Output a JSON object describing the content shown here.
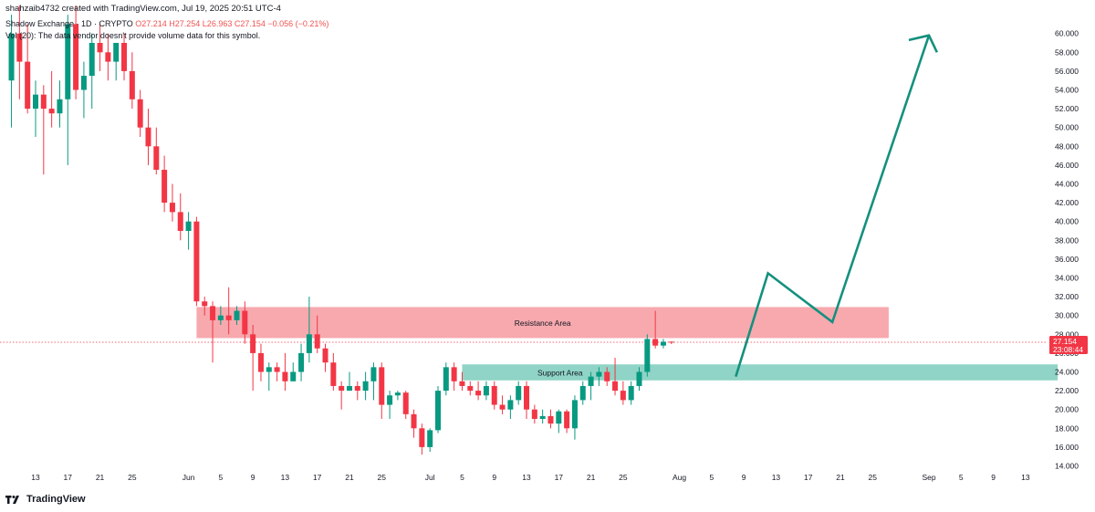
{
  "header": {
    "creator_line": "shahzaib4732 created with TradingView.com, Jul 19, 2025 20:51 UTC-4",
    "symbol_line": "Shadow Exchange · 1D · CRYPTO",
    "ohlc_line": "O27.214 H27.254 L26.963 C27.154 −0.056 (−0.21%)",
    "volume_note": "Vol (20): The data vendor doesn't provide volume data for this symbol."
  },
  "footer": {
    "brand": "TradingView"
  },
  "colors": {
    "up": "#089981",
    "down": "#f23645",
    "resistance_fill": "#f7a9ae",
    "support_fill": "#8fd4c6",
    "projection": "#14907e",
    "price_tag": "#f23645"
  },
  "chart_data": {
    "type": "candlestick",
    "timeframe": "1D",
    "y_axis": {
      "min": 14,
      "max": 61,
      "side": "right",
      "ticks": [
        "14.000",
        "16.000",
        "18.000",
        "20.000",
        "22.000",
        "24.000",
        "26.000",
        "28.000",
        "30.000",
        "32.000",
        "34.000",
        "36.000",
        "38.000",
        "40.000",
        "42.000",
        "44.000",
        "46.000",
        "48.000",
        "50.000",
        "52.000",
        "54.000",
        "56.000",
        "58.000",
        "60.000"
      ]
    },
    "x_axis": {
      "ticks": [
        {
          "label": "13",
          "day": 0
        },
        {
          "label": "17",
          "day": 4
        },
        {
          "label": "21",
          "day": 8
        },
        {
          "label": "25",
          "day": 12
        },
        {
          "label": "Jun",
          "day": 19
        },
        {
          "label": "5",
          "day": 23
        },
        {
          "label": "9",
          "day": 27
        },
        {
          "label": "13",
          "day": 31
        },
        {
          "label": "17",
          "day": 35
        },
        {
          "label": "21",
          "day": 39
        },
        {
          "label": "25",
          "day": 43
        },
        {
          "label": "Jul",
          "day": 49
        },
        {
          "label": "5",
          "day": 53
        },
        {
          "label": "9",
          "day": 57
        },
        {
          "label": "13",
          "day": 61
        },
        {
          "label": "17",
          "day": 65
        },
        {
          "label": "21",
          "day": 69
        },
        {
          "label": "25",
          "day": 73
        },
        {
          "label": "Aug",
          "day": 80
        },
        {
          "label": "5",
          "day": 84
        },
        {
          "label": "9",
          "day": 88
        },
        {
          "label": "13",
          "day": 92
        },
        {
          "label": "17",
          "day": 96
        },
        {
          "label": "21",
          "day": 100
        },
        {
          "label": "25",
          "day": 104
        },
        {
          "label": "Sep",
          "day": 111
        },
        {
          "label": "5",
          "day": 115
        },
        {
          "label": "9",
          "day": 119
        },
        {
          "label": "13",
          "day": 123
        }
      ]
    },
    "candles": [
      {
        "d": -3,
        "o": 55,
        "h": 62,
        "l": 50,
        "c": 60
      },
      {
        "d": -2,
        "o": 60,
        "h": 63,
        "l": 53,
        "c": 57
      },
      {
        "d": -1,
        "o": 57,
        "h": 61,
        "l": 51.5,
        "c": 52
      },
      {
        "d": 0,
        "o": 52,
        "h": 55,
        "l": 49,
        "c": 53.5
      },
      {
        "d": 1,
        "o": 53.5,
        "h": 54.5,
        "l": 45,
        "c": 52
      },
      {
        "d": 2,
        "o": 52,
        "h": 56,
        "l": 50,
        "c": 51.5
      },
      {
        "d": 3,
        "o": 51.5,
        "h": 55,
        "l": 50,
        "c": 53
      },
      {
        "d": 4,
        "o": 53,
        "h": 62,
        "l": 46,
        "c": 61
      },
      {
        "d": 5,
        "o": 61,
        "h": 63,
        "l": 53,
        "c": 54
      },
      {
        "d": 6,
        "o": 54,
        "h": 57,
        "l": 51,
        "c": 55.5
      },
      {
        "d": 7,
        "o": 55.5,
        "h": 60,
        "l": 52,
        "c": 59
      },
      {
        "d": 8,
        "o": 59,
        "h": 61,
        "l": 56,
        "c": 58
      },
      {
        "d": 9,
        "o": 58,
        "h": 60,
        "l": 55,
        "c": 57
      },
      {
        "d": 10,
        "o": 57,
        "h": 59,
        "l": 55,
        "c": 59
      },
      {
        "d": 11,
        "o": 59,
        "h": 60,
        "l": 55,
        "c": 56
      },
      {
        "d": 12,
        "o": 56,
        "h": 58,
        "l": 52,
        "c": 53
      },
      {
        "d": 13,
        "o": 53,
        "h": 54,
        "l": 49,
        "c": 50
      },
      {
        "d": 14,
        "o": 50,
        "h": 52,
        "l": 46,
        "c": 48
      },
      {
        "d": 15,
        "o": 48,
        "h": 50,
        "l": 45,
        "c": 45.5
      },
      {
        "d": 16,
        "o": 45.5,
        "h": 47,
        "l": 41,
        "c": 42
      },
      {
        "d": 17,
        "o": 42,
        "h": 44,
        "l": 40,
        "c": 41
      },
      {
        "d": 18,
        "o": 41,
        "h": 43,
        "l": 38,
        "c": 39
      },
      {
        "d": 19,
        "o": 39,
        "h": 41,
        "l": 37,
        "c": 40
      },
      {
        "d": 20,
        "o": 40,
        "h": 40.5,
        "l": 31,
        "c": 31.5
      },
      {
        "d": 21,
        "o": 31.5,
        "h": 32,
        "l": 30,
        "c": 31
      },
      {
        "d": 22,
        "o": 31,
        "h": 31.5,
        "l": 25,
        "c": 29.5
      },
      {
        "d": 23,
        "o": 29.5,
        "h": 31,
        "l": 29,
        "c": 30
      },
      {
        "d": 24,
        "o": 30,
        "h": 33,
        "l": 28,
        "c": 29.5
      },
      {
        "d": 25,
        "o": 29.5,
        "h": 31,
        "l": 29,
        "c": 30.5
      },
      {
        "d": 26,
        "o": 30.5,
        "h": 31.5,
        "l": 27,
        "c": 28
      },
      {
        "d": 27,
        "o": 28,
        "h": 29,
        "l": 22,
        "c": 26
      },
      {
        "d": 28,
        "o": 26,
        "h": 27,
        "l": 23,
        "c": 24
      },
      {
        "d": 29,
        "o": 24,
        "h": 25,
        "l": 22,
        "c": 24.5
      },
      {
        "d": 30,
        "o": 24.5,
        "h": 25,
        "l": 23,
        "c": 24
      },
      {
        "d": 31,
        "o": 24,
        "h": 26,
        "l": 22,
        "c": 23
      },
      {
        "d": 32,
        "o": 23,
        "h": 25,
        "l": 23,
        "c": 24
      },
      {
        "d": 33,
        "o": 24,
        "h": 27,
        "l": 23,
        "c": 26
      },
      {
        "d": 34,
        "o": 26,
        "h": 32,
        "l": 25,
        "c": 28
      },
      {
        "d": 35,
        "o": 28,
        "h": 30,
        "l": 26,
        "c": 26.5
      },
      {
        "d": 36,
        "o": 26.5,
        "h": 27,
        "l": 24,
        "c": 25
      },
      {
        "d": 37,
        "o": 25,
        "h": 26,
        "l": 22,
        "c": 22.5
      },
      {
        "d": 38,
        "o": 22.5,
        "h": 23,
        "l": 20,
        "c": 22
      },
      {
        "d": 39,
        "o": 22,
        "h": 24,
        "l": 22,
        "c": 22.5
      },
      {
        "d": 40,
        "o": 22.5,
        "h": 23,
        "l": 21,
        "c": 22
      },
      {
        "d": 41,
        "o": 22,
        "h": 24,
        "l": 21,
        "c": 23
      },
      {
        "d": 42,
        "o": 23,
        "h": 25,
        "l": 21,
        "c": 24.5
      },
      {
        "d": 43,
        "o": 24.5,
        "h": 25,
        "l": 19,
        "c": 20.5
      },
      {
        "d": 44,
        "o": 20.5,
        "h": 22,
        "l": 19,
        "c": 21.5
      },
      {
        "d": 45,
        "o": 21.5,
        "h": 22,
        "l": 21,
        "c": 21.8
      },
      {
        "d": 46,
        "o": 21.8,
        "h": 22,
        "l": 19,
        "c": 19.5
      },
      {
        "d": 47,
        "o": 19.5,
        "h": 20,
        "l": 17,
        "c": 18
      },
      {
        "d": 48,
        "o": 18,
        "h": 18.5,
        "l": 15.2,
        "c": 16
      },
      {
        "d": 49,
        "o": 16,
        "h": 18,
        "l": 15.5,
        "c": 17.8
      },
      {
        "d": 50,
        "o": 17.8,
        "h": 22.5,
        "l": 17.5,
        "c": 22
      },
      {
        "d": 51,
        "o": 22,
        "h": 25,
        "l": 21.5,
        "c": 24.5
      },
      {
        "d": 52,
        "o": 24.5,
        "h": 25,
        "l": 22,
        "c": 23
      },
      {
        "d": 53,
        "o": 23,
        "h": 24,
        "l": 22,
        "c": 22.5
      },
      {
        "d": 54,
        "o": 22.5,
        "h": 23,
        "l": 21.5,
        "c": 22
      },
      {
        "d": 55,
        "o": 22,
        "h": 23,
        "l": 21,
        "c": 21.5
      },
      {
        "d": 56,
        "o": 21.5,
        "h": 23,
        "l": 21,
        "c": 22.5
      },
      {
        "d": 57,
        "o": 22.5,
        "h": 23,
        "l": 20,
        "c": 20.5
      },
      {
        "d": 58,
        "o": 20.5,
        "h": 21.5,
        "l": 19.5,
        "c": 20
      },
      {
        "d": 59,
        "o": 20,
        "h": 21.5,
        "l": 19,
        "c": 21
      },
      {
        "d": 60,
        "o": 21,
        "h": 23,
        "l": 20.5,
        "c": 22.5
      },
      {
        "d": 61,
        "o": 22.5,
        "h": 23,
        "l": 19,
        "c": 20
      },
      {
        "d": 62,
        "o": 20,
        "h": 20.5,
        "l": 18.5,
        "c": 19
      },
      {
        "d": 63,
        "o": 19,
        "h": 20,
        "l": 18.5,
        "c": 19.3
      },
      {
        "d": 64,
        "o": 19.3,
        "h": 20,
        "l": 18,
        "c": 18.5
      },
      {
        "d": 65,
        "o": 18.5,
        "h": 20,
        "l": 17.5,
        "c": 19.8
      },
      {
        "d": 66,
        "o": 19.8,
        "h": 20,
        "l": 17.5,
        "c": 18
      },
      {
        "d": 67,
        "o": 18,
        "h": 21.5,
        "l": 16.8,
        "c": 21
      },
      {
        "d": 68,
        "o": 21,
        "h": 23,
        "l": 20.5,
        "c": 22.5
      },
      {
        "d": 69,
        "o": 22.5,
        "h": 24,
        "l": 21,
        "c": 23.5
      },
      {
        "d": 70,
        "o": 23.5,
        "h": 24.5,
        "l": 22.5,
        "c": 24
      },
      {
        "d": 71,
        "o": 24,
        "h": 24.5,
        "l": 22.5,
        "c": 23
      },
      {
        "d": 72,
        "o": 23,
        "h": 25.5,
        "l": 21.5,
        "c": 22
      },
      {
        "d": 73,
        "o": 22,
        "h": 23,
        "l": 20.5,
        "c": 21
      },
      {
        "d": 74,
        "o": 21,
        "h": 23,
        "l": 20.5,
        "c": 22.5
      },
      {
        "d": 75,
        "o": 22.5,
        "h": 24.5,
        "l": 22,
        "c": 24
      },
      {
        "d": 76,
        "o": 24,
        "h": 28,
        "l": 23.5,
        "c": 27.5
      },
      {
        "d": 77,
        "o": 27.5,
        "h": 30.5,
        "l": 26.5,
        "c": 26.8
      },
      {
        "d": 78,
        "o": 26.8,
        "h": 27.5,
        "l": 26.5,
        "c": 27.21
      },
      {
        "d": 79,
        "o": 27.214,
        "h": 27.254,
        "l": 26.963,
        "c": 27.154
      }
    ],
    "zones": [
      {
        "label": "Resistance Area",
        "from_day": 20,
        "to_day": 106,
        "low": 27.6,
        "high": 30.9,
        "color": "resistance"
      },
      {
        "label": "Support Area",
        "from_day": 53,
        "to_day": 127,
        "low": 23.1,
        "high": 24.8,
        "color": "support"
      }
    ],
    "projection_path": [
      {
        "day": 87,
        "price": 23.5
      },
      {
        "day": 91,
        "price": 34.5
      },
      {
        "day": 99,
        "price": 29.3
      },
      {
        "day": 111,
        "price": 59.8
      }
    ],
    "projection_arrowhead": [
      {
        "day": 108.5,
        "price": 59.3
      },
      {
        "day": 111,
        "price": 59.8
      },
      {
        "day": 112,
        "price": 58
      }
    ],
    "last_price": {
      "value": 27.154,
      "label": "27.154",
      "countdown": "23:08:44"
    }
  }
}
